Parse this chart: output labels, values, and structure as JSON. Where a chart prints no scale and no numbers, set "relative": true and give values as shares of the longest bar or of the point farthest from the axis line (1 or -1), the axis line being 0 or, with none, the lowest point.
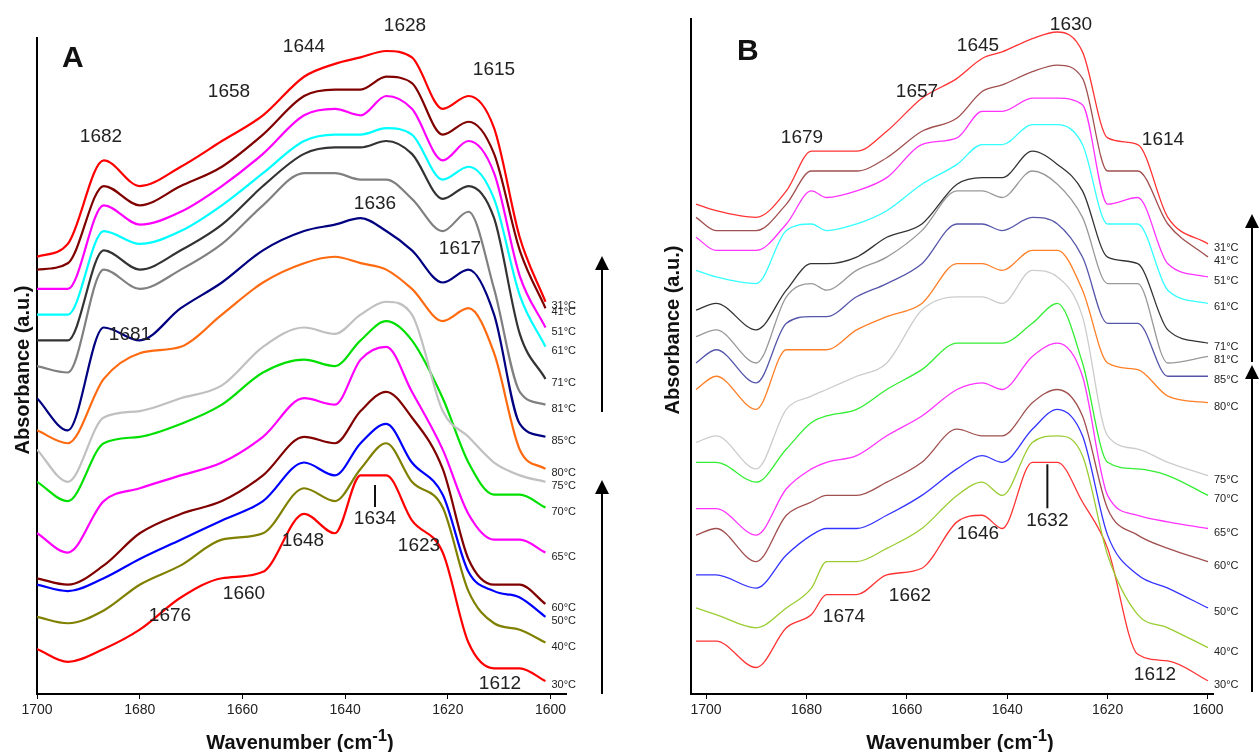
{
  "chart_data": [
    {
      "type": "line",
      "title": "A",
      "xlabel": "Wavenumber (cm$^{-1}$)",
      "ylabel": "Absorbance (a.u.)",
      "relative": true,
      "xlim": [
        1700,
        1597
      ],
      "xticks": [
        1700,
        1680,
        1660,
        1640,
        1620,
        1600
      ],
      "x": [
        1700,
        1694,
        1687,
        1680,
        1672,
        1664,
        1656,
        1648,
        1642,
        1637,
        1632,
        1627,
        1621,
        1616,
        1611,
        1606,
        1601
      ],
      "series": [
        {
          "name": "31°C",
          "color": "#ff0000",
          "values": [
            0.68,
            0.7,
            0.83,
            0.79,
            0.82,
            0.86,
            0.9,
            0.96,
            0.98,
            0.99,
            1.0,
            0.99,
            0.91,
            0.93,
            0.88,
            0.71,
            0.61
          ]
        },
        {
          "name": "41°C",
          "color": "#800000",
          "values": [
            0.66,
            0.67,
            0.79,
            0.76,
            0.79,
            0.82,
            0.87,
            0.93,
            0.94,
            0.94,
            0.96,
            0.95,
            0.87,
            0.89,
            0.84,
            0.69,
            0.6
          ]
        },
        {
          "name": "51°C",
          "color": "#ff00ff",
          "values": [
            0.63,
            0.63,
            0.76,
            0.73,
            0.75,
            0.79,
            0.84,
            0.9,
            0.91,
            0.9,
            0.93,
            0.91,
            0.83,
            0.86,
            0.81,
            0.65,
            0.57
          ]
        },
        {
          "name": "61°C",
          "color": "#00ffff",
          "values": [
            0.59,
            0.59,
            0.72,
            0.7,
            0.72,
            0.76,
            0.81,
            0.86,
            0.87,
            0.87,
            0.88,
            0.87,
            0.8,
            0.82,
            0.77,
            0.62,
            0.54
          ]
        },
        {
          "name": "71°C",
          "color": "#333333",
          "values": [
            0.55,
            0.55,
            0.69,
            0.66,
            0.69,
            0.73,
            0.79,
            0.84,
            0.85,
            0.85,
            0.86,
            0.84,
            0.77,
            0.79,
            0.74,
            0.56,
            0.49
          ]
        },
        {
          "name": "81°C",
          "color": "#808080",
          "values": [
            0.51,
            0.5,
            0.66,
            0.63,
            0.66,
            0.7,
            0.76,
            0.81,
            0.81,
            0.8,
            0.8,
            0.77,
            0.72,
            0.75,
            0.63,
            0.47,
            0.45
          ]
        },
        {
          "name": "85°C",
          "color": "#000080",
          "values": [
            0.46,
            0.41,
            0.57,
            0.55,
            0.6,
            0.64,
            0.69,
            0.72,
            0.73,
            0.74,
            0.72,
            0.69,
            0.64,
            0.66,
            0.59,
            0.42,
            0.4
          ]
        },
        {
          "name": "80°C",
          "color": "#ff6a10",
          "values": [
            0.41,
            0.39,
            0.49,
            0.53,
            0.54,
            0.59,
            0.64,
            0.67,
            0.68,
            0.67,
            0.66,
            0.63,
            0.58,
            0.6,
            0.53,
            0.38,
            0.35
          ]
        },
        {
          "name": "75°C",
          "color": "#c0c0c0",
          "values": [
            0.38,
            0.33,
            0.43,
            0.44,
            0.46,
            0.48,
            0.54,
            0.57,
            0.56,
            0.59,
            0.61,
            0.59,
            0.44,
            0.4,
            0.36,
            0.34,
            0.33
          ]
        },
        {
          "name": "70°C",
          "color": "#00e000",
          "values": [
            0.33,
            0.3,
            0.39,
            0.4,
            0.42,
            0.45,
            0.5,
            0.52,
            0.51,
            0.55,
            0.58,
            0.55,
            0.46,
            0.36,
            0.31,
            0.31,
            0.29
          ]
        },
        {
          "name": "65°C",
          "color": "#ff00ff",
          "values": [
            0.25,
            0.22,
            0.3,
            0.32,
            0.34,
            0.36,
            0.4,
            0.46,
            0.45,
            0.52,
            0.54,
            0.47,
            0.38,
            0.28,
            0.24,
            0.24,
            0.22
          ]
        },
        {
          "name": "60°C",
          "color": "#800000",
          "values": [
            0.18,
            0.17,
            0.2,
            0.25,
            0.28,
            0.3,
            0.34,
            0.4,
            0.39,
            0.44,
            0.47,
            0.43,
            0.35,
            0.21,
            0.17,
            0.17,
            0.14
          ]
        },
        {
          "name": "50°C",
          "color": "#0000ff",
          "values": [
            0.17,
            0.16,
            0.18,
            0.21,
            0.24,
            0.27,
            0.3,
            0.36,
            0.34,
            0.39,
            0.42,
            0.36,
            0.31,
            0.19,
            0.16,
            0.15,
            0.12
          ]
        },
        {
          "name": "40°C",
          "color": "#808000",
          "values": [
            0.12,
            0.11,
            0.13,
            0.17,
            0.2,
            0.24,
            0.25,
            0.32,
            0.3,
            0.35,
            0.39,
            0.33,
            0.29,
            0.16,
            0.11,
            0.1,
            0.08
          ]
        },
        {
          "name": "30°C",
          "color": "#ff0000",
          "values": [
            0.07,
            0.05,
            0.07,
            0.1,
            0.15,
            0.18,
            0.19,
            0.28,
            0.25,
            0.34,
            0.34,
            0.27,
            0.22,
            0.08,
            0.04,
            0.04,
            0.02
          ]
        }
      ],
      "annotations": [
        "1682",
        "1658",
        "1644",
        "1628",
        "1615",
        "1636",
        "1617",
        "1681",
        "1634",
        "1648",
        "1623",
        "1660",
        "1676",
        "1612"
      ]
    },
    {
      "type": "line",
      "title": "B",
      "xlabel": "Wavenumber (cm$^{-1}$)",
      "ylabel": "Absorbance (a.u.)",
      "relative": true,
      "xlim": [
        1703,
        1599
      ],
      "xticks": [
        1700,
        1680,
        1660,
        1640,
        1620,
        1600
      ],
      "x": [
        1702,
        1698,
        1690,
        1684,
        1679,
        1676,
        1670,
        1664,
        1657,
        1650,
        1645,
        1641,
        1635,
        1630,
        1625,
        1620,
        1614,
        1608,
        1600
      ],
      "series": [
        {
          "name": "31°C",
          "color": "#ff3333",
          "values": [
            0.74,
            0.73,
            0.72,
            0.76,
            0.82,
            0.82,
            0.82,
            0.85,
            0.9,
            0.93,
            0.96,
            0.97,
            0.99,
            1.0,
            0.97,
            0.84,
            0.83,
            0.72,
            0.68
          ]
        },
        {
          "name": "41°C",
          "color": "#a0504f",
          "values": [
            0.72,
            0.7,
            0.7,
            0.74,
            0.79,
            0.79,
            0.79,
            0.81,
            0.85,
            0.87,
            0.91,
            0.92,
            0.94,
            0.95,
            0.93,
            0.79,
            0.79,
            0.71,
            0.66
          ]
        },
        {
          "name": "51°C",
          "color": "#ff33ff",
          "values": [
            0.69,
            0.67,
            0.67,
            0.71,
            0.76,
            0.75,
            0.76,
            0.78,
            0.83,
            0.84,
            0.88,
            0.88,
            0.9,
            0.9,
            0.89,
            0.74,
            0.75,
            0.65,
            0.63
          ]
        },
        {
          "name": "61°C",
          "color": "#33ffff",
          "values": [
            0.64,
            0.63,
            0.62,
            0.7,
            0.71,
            0.7,
            0.71,
            0.73,
            0.77,
            0.8,
            0.83,
            0.83,
            0.86,
            0.86,
            0.83,
            0.71,
            0.71,
            0.61,
            0.59
          ]
        },
        {
          "name": "71°C",
          "color": "#333333",
          "values": [
            0.58,
            0.59,
            0.55,
            0.61,
            0.65,
            0.65,
            0.66,
            0.69,
            0.71,
            0.77,
            0.78,
            0.78,
            0.82,
            0.8,
            0.76,
            0.66,
            0.65,
            0.55,
            0.53
          ]
        },
        {
          "name": "81°C",
          "color": "#999999",
          "values": [
            0.54,
            0.55,
            0.5,
            0.6,
            0.62,
            0.61,
            0.64,
            0.66,
            0.7,
            0.76,
            0.76,
            0.75,
            0.79,
            0.77,
            0.72,
            0.62,
            0.62,
            0.5,
            0.51
          ]
        },
        {
          "name": "85°C",
          "color": "#5555aa",
          "values": [
            0.5,
            0.52,
            0.47,
            0.56,
            0.57,
            0.57,
            0.6,
            0.62,
            0.65,
            0.71,
            0.71,
            0.7,
            0.72,
            0.71,
            0.66,
            0.56,
            0.56,
            0.48,
            0.48
          ]
        },
        {
          "name": "80°C",
          "color": "#ff7f27",
          "values": [
            0.46,
            0.48,
            0.43,
            0.52,
            0.52,
            0.52,
            0.55,
            0.57,
            0.59,
            0.65,
            0.65,
            0.64,
            0.67,
            0.67,
            0.61,
            0.5,
            0.49,
            0.45,
            0.44
          ]
        },
        {
          "name": "75°C",
          "color": "#cccccc",
          "values": [
            0.38,
            0.39,
            0.34,
            0.43,
            0.45,
            0.46,
            0.48,
            0.5,
            0.58,
            0.6,
            0.6,
            0.59,
            0.64,
            0.63,
            0.57,
            0.39,
            0.37,
            0.35,
            0.33
          ]
        },
        {
          "name": "70°C",
          "color": "#33ee33",
          "values": [
            0.35,
            0.35,
            0.32,
            0.37,
            0.41,
            0.42,
            0.43,
            0.46,
            0.49,
            0.53,
            0.53,
            0.53,
            0.56,
            0.59,
            0.5,
            0.35,
            0.34,
            0.33,
            0.3
          ]
        },
        {
          "name": "65°C",
          "color": "#ff33ff",
          "values": [
            0.28,
            0.28,
            0.24,
            0.31,
            0.34,
            0.35,
            0.36,
            0.39,
            0.42,
            0.46,
            0.47,
            0.46,
            0.51,
            0.53,
            0.48,
            0.3,
            0.27,
            0.26,
            0.25
          ]
        },
        {
          "name": "60°C",
          "color": "#a0504f",
          "values": [
            0.24,
            0.25,
            0.2,
            0.27,
            0.29,
            0.3,
            0.3,
            0.32,
            0.35,
            0.4,
            0.39,
            0.39,
            0.44,
            0.46,
            0.42,
            0.28,
            0.24,
            0.22,
            0.2
          ]
        },
        {
          "name": "50°C",
          "color": "#3333ff",
          "values": [
            0.18,
            0.18,
            0.16,
            0.21,
            0.24,
            0.25,
            0.25,
            0.27,
            0.3,
            0.34,
            0.36,
            0.35,
            0.4,
            0.43,
            0.39,
            0.24,
            0.18,
            0.16,
            0.13
          ]
        },
        {
          "name": "40°C",
          "color": "#9acd32",
          "values": [
            0.13,
            0.12,
            0.1,
            0.13,
            0.16,
            0.2,
            0.2,
            0.22,
            0.25,
            0.3,
            0.32,
            0.3,
            0.38,
            0.39,
            0.36,
            0.21,
            0.12,
            0.1,
            0.07
          ]
        },
        {
          "name": "30°C",
          "color": "#ff3333",
          "values": [
            0.08,
            0.08,
            0.04,
            0.1,
            0.12,
            0.15,
            0.15,
            0.18,
            0.19,
            0.26,
            0.27,
            0.25,
            0.35,
            0.35,
            0.29,
            0.22,
            0.06,
            0.05,
            0.02
          ]
        }
      ],
      "annotations": [
        "1679",
        "1657",
        "1645",
        "1630",
        "1614",
        "1646",
        {
          "text": "1632",
          "x": 1632,
          "y": 0.35
        },
        "1662",
        "1674",
        "1612"
      ]
    }
  ]
}
